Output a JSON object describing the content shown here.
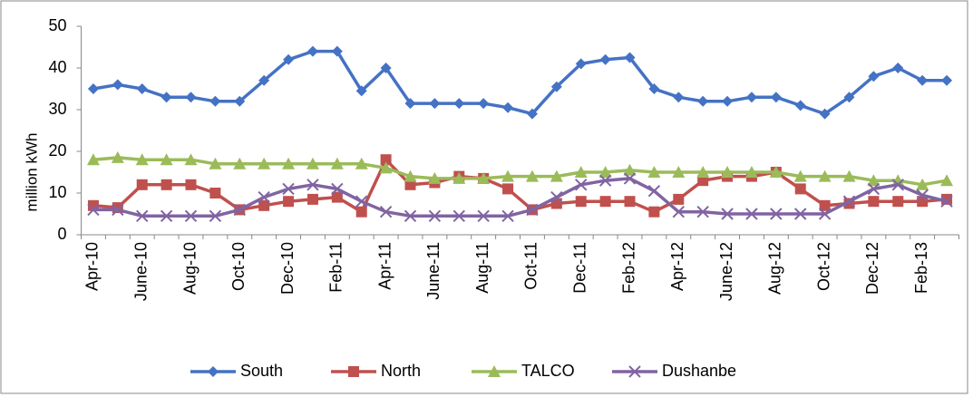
{
  "chart_data": {
    "type": "line",
    "y_label": "million kWh",
    "categories": [
      "Apr-10",
      null,
      "June-10",
      null,
      "Aug-10",
      null,
      "Oct-10",
      null,
      "Dec-10",
      null,
      "Feb-11",
      null,
      "Apr-11",
      null,
      "June-11",
      null,
      "Aug-11",
      null,
      "Oct-11",
      null,
      "Dec-11",
      null,
      "Feb-12",
      null,
      "Apr-12",
      null,
      "June-12",
      null,
      "Aug-12",
      null,
      "Oct-12",
      null,
      "Dec-12",
      null,
      "Feb-13",
      null
    ],
    "series": [
      {
        "name": "South",
        "color": "#4472c4",
        "marker": "diamond",
        "values": [
          35,
          36,
          35,
          33,
          33,
          32,
          32,
          37,
          42,
          44,
          44,
          34.5,
          40,
          31.5,
          31.5,
          31.5,
          31.5,
          30.5,
          29,
          35.5,
          41,
          42,
          42.5,
          35,
          33,
          32,
          32,
          33,
          33,
          31,
          29,
          33,
          38,
          40,
          37,
          37
        ]
      },
      {
        "name": "North",
        "color": "#c0504d",
        "marker": "square",
        "values": [
          7,
          6.5,
          12,
          12,
          12,
          10,
          6,
          7,
          8,
          8.5,
          9,
          5.5,
          18,
          12,
          12.5,
          14,
          13.5,
          11,
          6,
          7.5,
          8,
          8,
          8,
          5.5,
          8.5,
          13,
          14,
          14,
          15,
          11,
          7,
          7.5,
          8,
          8,
          8,
          8.5
        ]
      },
      {
        "name": "TALCO",
        "color": "#9bbb59",
        "marker": "triangle",
        "values": [
          18,
          18.5,
          18,
          18,
          18,
          17,
          17,
          17,
          17,
          17,
          17,
          17,
          16,
          14,
          13.5,
          13.5,
          13.5,
          14,
          14,
          14,
          15,
          15,
          15.5,
          15,
          15,
          15,
          15,
          15,
          15,
          14,
          14,
          14,
          13,
          13,
          12,
          13
        ]
      },
      {
        "name": "Dushanbe",
        "color": "#8064a2",
        "marker": "x",
        "values": [
          6,
          6,
          4.5,
          4.5,
          4.5,
          4.5,
          6,
          9,
          11,
          12,
          11,
          8,
          5.5,
          4.5,
          4.5,
          4.5,
          4.5,
          4.5,
          6,
          9,
          12,
          13,
          13.5,
          10.5,
          5.5,
          5.5,
          5,
          5,
          5,
          5,
          5,
          8,
          11,
          12,
          9.5,
          8
        ]
      }
    ],
    "ylim": [
      0,
      50
    ],
    "yticks": [
      0,
      10,
      20,
      30,
      40,
      50
    ],
    "grid": false,
    "legend": "bottom"
  }
}
